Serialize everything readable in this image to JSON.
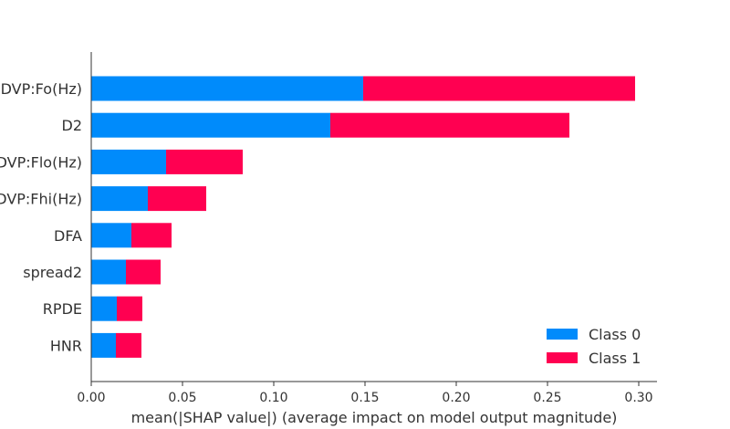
{
  "chart_data": {
    "type": "bar",
    "orientation": "horizontal",
    "stacked": true,
    "categories": [
      "MDVP:Fo(Hz)",
      "D2",
      "MDVP:Flo(Hz)",
      "MDVP:Fhi(Hz)",
      "DFA",
      "spread2",
      "RPDE",
      "HNR"
    ],
    "series": [
      {
        "name": "Class 0",
        "color": "#008bfb",
        "values": [
          0.149,
          0.131,
          0.041,
          0.031,
          0.022,
          0.019,
          0.014,
          0.0135
        ]
      },
      {
        "name": "Class 1",
        "color": "#ff0051",
        "values": [
          0.149,
          0.131,
          0.042,
          0.032,
          0.022,
          0.019,
          0.014,
          0.014
        ]
      }
    ],
    "xlabel": "mean(|SHAP value|) (average impact on model output magnitude)",
    "xticks": [
      "0.00",
      "0.05",
      "0.10",
      "0.15",
      "0.20",
      "0.25",
      "0.30"
    ],
    "xlim": [
      0,
      0.31
    ],
    "legend_position": "lower-right",
    "grid": false
  }
}
